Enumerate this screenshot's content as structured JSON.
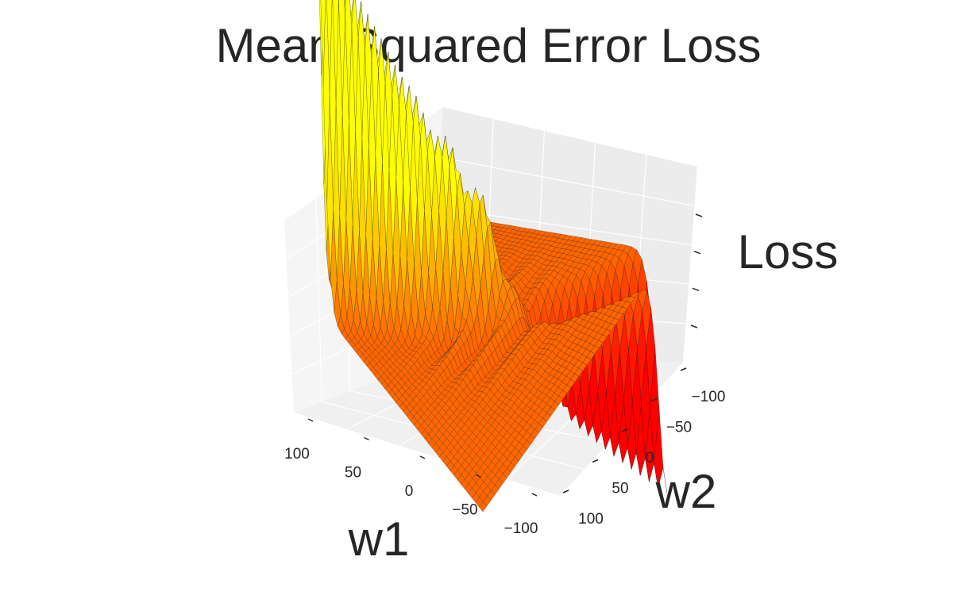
{
  "chart_data": {
    "type": "surface3d",
    "title": "Mean Squared Error Loss",
    "xlabel": "w1",
    "ylabel": "w2",
    "zlabel": "Loss",
    "x_ticks": [
      "100",
      "50",
      "0",
      "−50",
      "−100"
    ],
    "y_ticks": [
      "−100",
      "−50",
      "0",
      "50",
      "100"
    ],
    "xlim": [
      -100,
      100
    ],
    "ylim": [
      -100,
      100
    ],
    "grid": true,
    "colormap": "autumn",
    "colors": {
      "low": "#ff0000",
      "high": "#ffff00",
      "edge": "#000000",
      "pane": "#f2f2f2",
      "grid": "#ffffff"
    }
  }
}
